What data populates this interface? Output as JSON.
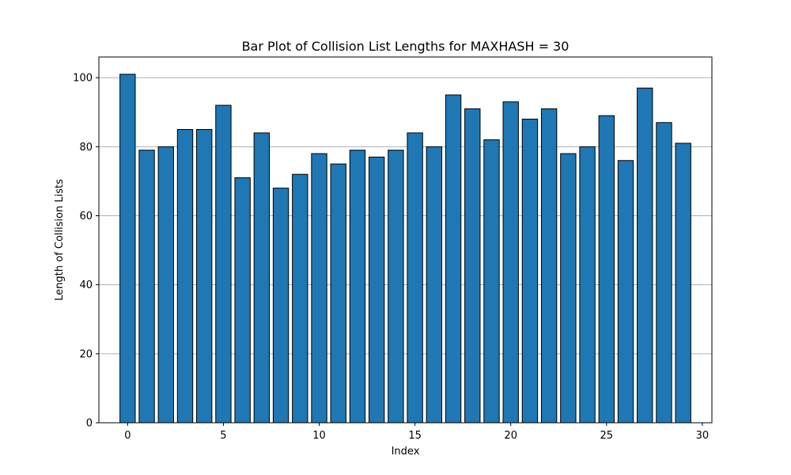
{
  "chart_data": {
    "type": "bar",
    "title": "Bar Plot of Collision List Lengths for MAXHASH = 30",
    "xlabel": "Index",
    "ylabel": "Length of Collision Lists",
    "categories": [
      0,
      1,
      2,
      3,
      4,
      5,
      6,
      7,
      8,
      9,
      10,
      11,
      12,
      13,
      14,
      15,
      16,
      17,
      18,
      19,
      20,
      21,
      22,
      23,
      24,
      25,
      26,
      27,
      28,
      29
    ],
    "values": [
      101,
      79,
      80,
      85,
      85,
      92,
      71,
      84,
      68,
      72,
      78,
      75,
      79,
      77,
      79,
      84,
      80,
      95,
      91,
      82,
      93,
      88,
      91,
      78,
      80,
      89,
      76,
      97,
      87,
      81
    ],
    "xlim": [
      -1.5,
      30.5
    ],
    "ylim": [
      0,
      106
    ],
    "xticks": [
      "0",
      "5",
      "10",
      "15",
      "20",
      "25",
      "30"
    ],
    "yticks": [
      "0",
      "20",
      "40",
      "60",
      "80",
      "100"
    ],
    "grid": "y-axis only",
    "bar_color": "#1f77b4",
    "edge_color": "#000000"
  }
}
